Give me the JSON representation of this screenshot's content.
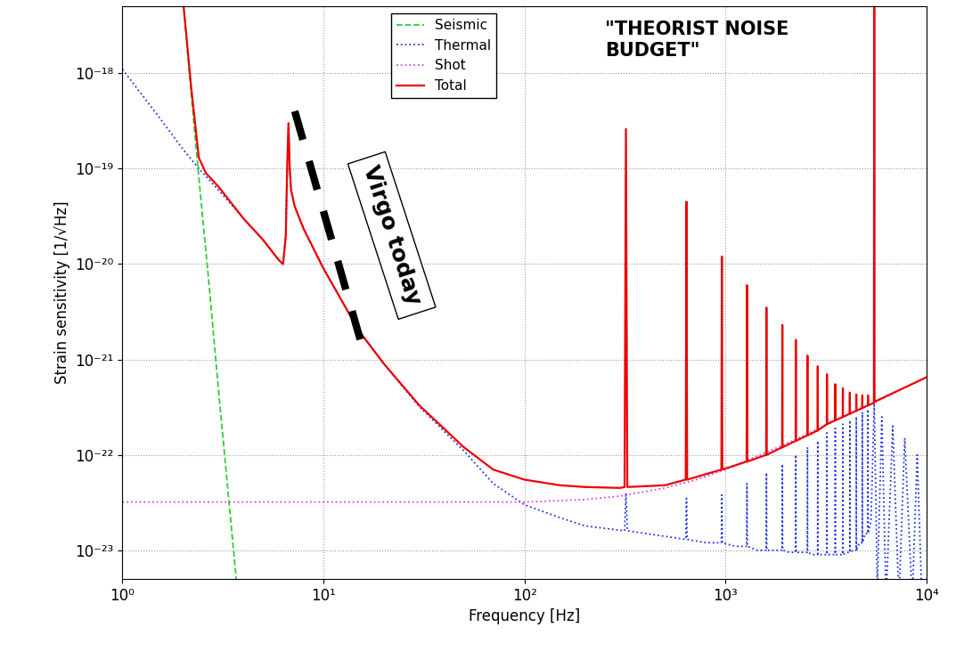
{
  "chart_data": {
    "type": "line",
    "xlabel": "Frequency [Hz]",
    "ylabel": "Strain sensitivity [1/√Hz]",
    "log": true,
    "grid": true,
    "legend": "upper center",
    "xlim": [
      1,
      10000
    ],
    "ylim": [
      5e-24,
      5e-18
    ],
    "xticks": [
      {
        "value": 1,
        "label": "10⁰"
      },
      {
        "value": 10,
        "label": "10¹"
      },
      {
        "value": 100,
        "label": "10²"
      },
      {
        "value": 1000,
        "label": "10³"
      },
      {
        "value": 10000,
        "label": "10⁴"
      }
    ],
    "yticks": [
      {
        "value": 1e-23,
        "label": "10⁻²³"
      },
      {
        "value": 1e-22,
        "label": "10⁻²²"
      },
      {
        "value": 1e-21,
        "label": "10⁻²¹"
      },
      {
        "value": 1e-20,
        "label": "10⁻²⁰"
      },
      {
        "value": 1e-19,
        "label": "10⁻¹⁹"
      },
      {
        "value": 1e-18,
        "label": "10⁻¹⁸"
      }
    ],
    "series": [
      {
        "name": "Seismic",
        "color": "#33cc33",
        "line_style": "dashed",
        "x": [
          2.0,
          2.2,
          2.4,
          2.7,
          3.0,
          3.4,
          3.8
        ],
        "values": [
          6e-18,
          6e-19,
          8e-20,
          6e-21,
          5e-22,
          3e-23,
          2.5e-24
        ]
      },
      {
        "name": "Thermal",
        "color": "#2233dd",
        "line_style": "dotted",
        "x": [
          1,
          1.5,
          2,
          2.4,
          3,
          4,
          5,
          6,
          6.3,
          6.5,
          6.6,
          6.7,
          6.8,
          6.9,
          7.2,
          8,
          10,
          15,
          20,
          30,
          50,
          70,
          100,
          150,
          200,
          315,
          320,
          325,
          500,
          635,
          640,
          645,
          800,
          955,
          960,
          965,
          1120,
          1275,
          1280,
          1285,
          1440,
          1595,
          1600,
          1605,
          1760,
          1915,
          1920,
          1925,
          2080,
          2235,
          2240,
          2245,
          2400,
          2555,
          2560,
          2565,
          2720,
          2875,
          2880,
          2885,
          3040,
          3195,
          3200,
          3205,
          3360,
          3515,
          3520,
          3525,
          3680,
          3835,
          3840,
          3845,
          4000,
          4155,
          4160,
          4165,
          4320,
          4475,
          4480,
          4485,
          4640,
          4795,
          4800,
          4805,
          4960,
          5115,
          5120,
          5125,
          5300,
          5500,
          5700,
          6000,
          6300,
          6800,
          7300,
          7800,
          8500,
          9000,
          9500,
          10000
        ],
        "values": [
          1.1e-18,
          3.6e-19,
          1.6e-19,
          1e-19,
          6e-20,
          3e-20,
          1.8e-20,
          1.1e-20,
          1e-20,
          2e-20,
          1e-19,
          3e-19,
          1e-19,
          6e-20,
          4e-20,
          2.3e-20,
          9e-21,
          2e-21,
          9e-22,
          3.2e-22,
          1.1e-22,
          5e-23,
          3e-23,
          2.2e-23,
          1.8e-23,
          1.6e-23,
          4e-23,
          1.6e-23,
          1.4e-23,
          1.3e-23,
          3.5e-23,
          1.3e-23,
          1.2e-23,
          1.2e-23,
          3.8e-23,
          1.2e-23,
          1.1e-23,
          1.1e-23,
          5e-23,
          1.1e-23,
          1e-23,
          1e-23,
          6.5e-23,
          1e-23,
          1e-23,
          1e-23,
          8e-23,
          1e-23,
          9.5e-24,
          9.5e-24,
          1e-22,
          9.5e-24,
          9.5e-24,
          9.5e-24,
          1.2e-22,
          9.5e-24,
          9e-24,
          9e-24,
          1.4e-22,
          9e-24,
          9e-24,
          9e-24,
          1.7e-22,
          9e-24,
          9e-24,
          9e-24,
          1.9e-22,
          9e-24,
          9e-24,
          9e-24,
          2.1e-22,
          9e-24,
          9.5e-24,
          9.5e-24,
          2.3e-22,
          9.5e-24,
          1e-23,
          1e-23,
          2.5e-22,
          1e-23,
          1.2e-23,
          1.2e-23,
          2.8e-22,
          1.2e-23,
          1.5e-23,
          1.5e-23,
          3e-22,
          1.5e-23,
          2e-23,
          3.5e-22,
          4e-24,
          2.5e-22,
          3e-24,
          2e-22,
          3e-24,
          1.5e-22,
          3e-24,
          1e-22,
          3e-24,
          5e-24
        ]
      },
      {
        "name": "Shot",
        "color": "#dd44dd",
        "line_style": "dotted",
        "x": [
          1,
          100,
          200,
          300,
          500,
          700,
          1000,
          2000,
          3000,
          5000,
          10000
        ],
        "values": [
          3.2e-23,
          3.2e-23,
          3.4e-23,
          3.7e-23,
          4.5e-23,
          5.4e-23,
          7e-23,
          1.3e-22,
          1.95e-22,
          3.2e-22,
          6.5e-22
        ]
      },
      {
        "name": "Total",
        "color": "#ee0000",
        "line_style": "solid",
        "x": [
          2.0,
          2.2,
          2.4,
          2.6,
          3,
          4,
          5,
          6,
          6.3,
          6.5,
          6.6,
          6.7,
          6.8,
          6.9,
          7.2,
          8,
          10,
          15,
          20,
          30,
          50,
          70,
          100,
          150,
          200,
          300,
          315,
          320,
          325,
          500,
          635,
          640,
          645,
          955,
          960,
          965,
          1275,
          1280,
          1285,
          1595,
          1600,
          1605,
          1915,
          1920,
          1925,
          2235,
          2240,
          2245,
          2555,
          2560,
          2565,
          2875,
          2880,
          2885,
          3195,
          3200,
          3205,
          3515,
          3520,
          3525,
          3835,
          3840,
          3845,
          4155,
          4160,
          4165,
          4475,
          4480,
          4485,
          4795,
          4800,
          4805,
          5115,
          5120,
          5125,
          5480,
          5500,
          5520,
          10000
        ],
        "values": [
          6e-18,
          7e-19,
          1.3e-19,
          9e-20,
          6.5e-20,
          3e-20,
          1.8e-20,
          1.1e-20,
          1e-20,
          2e-20,
          1e-19,
          3e-19,
          1e-19,
          6e-20,
          4e-20,
          2.3e-20,
          9e-21,
          2e-21,
          9e-22,
          3.3e-22,
          1.2e-22,
          7e-23,
          5.5e-23,
          4.8e-23,
          4.6e-23,
          4.5e-23,
          4.6e-23,
          2.6e-19,
          4.6e-23,
          4.8e-23,
          5.5e-23,
          4.5e-20,
          5.5e-23,
          7e-23,
          1.2e-20,
          7e-23,
          8.5e-23,
          6e-21,
          8.5e-23,
          1e-22,
          3.5e-21,
          1e-22,
          1.2e-22,
          2.3e-21,
          1.2e-22,
          1.4e-22,
          1.6e-21,
          1.4e-22,
          1.6e-22,
          1.1e-21,
          1.6e-22,
          1.8e-22,
          8.5e-22,
          1.8e-22,
          2.1e-22,
          7e-22,
          2.1e-22,
          2.3e-22,
          5.5e-22,
          2.3e-22,
          2.5e-22,
          5e-22,
          2.5e-22,
          2.7e-22,
          4.5e-22,
          2.7e-22,
          2.9e-22,
          4.3e-22,
          2.9e-22,
          3.1e-22,
          4.2e-22,
          3.1e-22,
          3.3e-22,
          4.2e-22,
          3.3e-22,
          3.5e-22,
          1e-17,
          3.6e-22,
          6.5e-22
        ]
      }
    ],
    "annotations": [
      {
        "text": "\"THEORIST NOISE\nBUDGET\""
      },
      {
        "text": "Virgo today",
        "x": [
          7.2,
          15.4
        ],
        "y": [
          4e-19,
          1.5e-21
        ]
      }
    ]
  }
}
